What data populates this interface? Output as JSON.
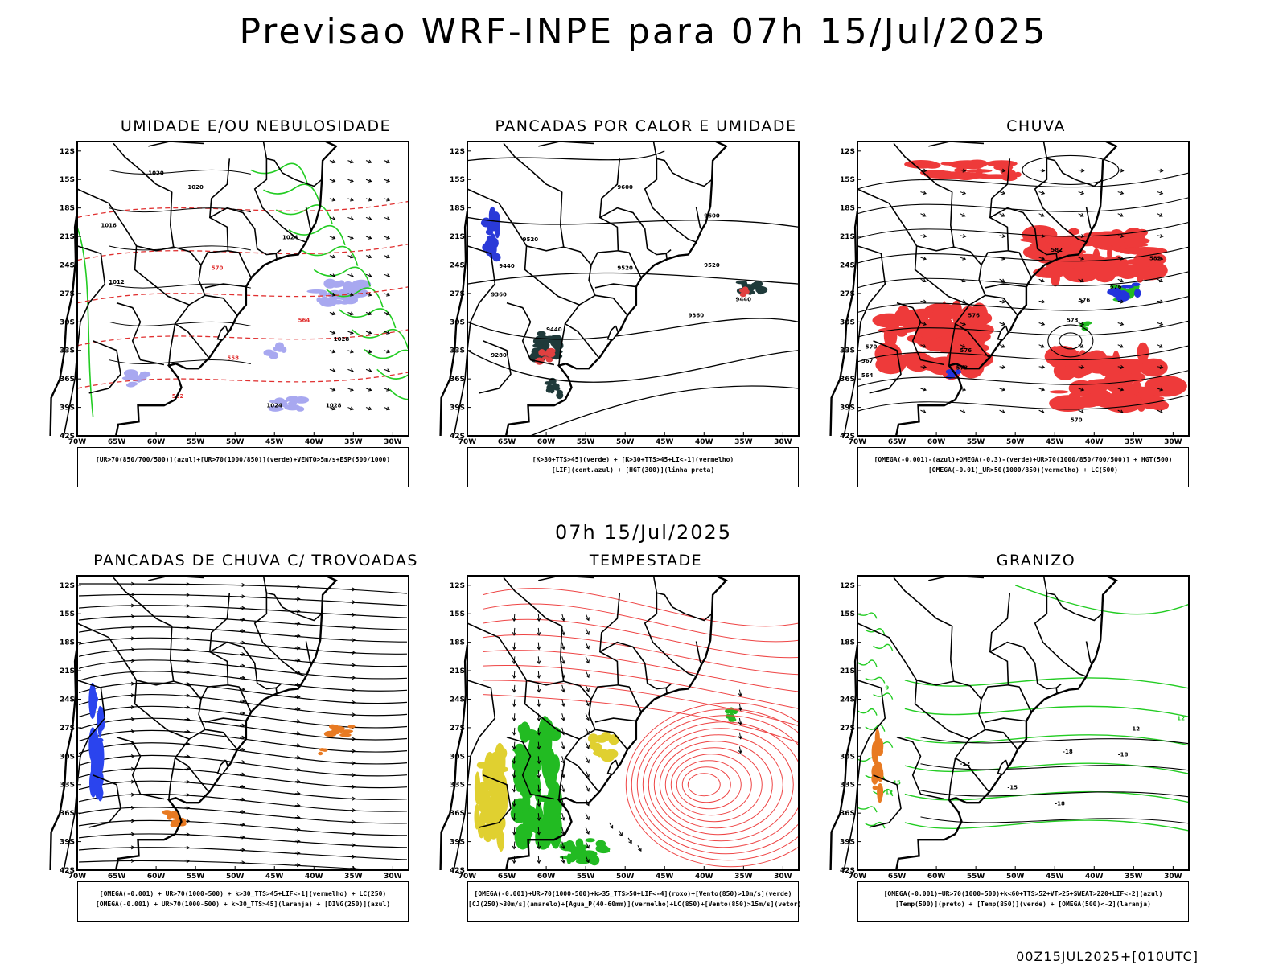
{
  "title": "Previsao WRF-INPE  para 07h 15/Jul/2025",
  "mid_title": "07h 15/Jul/2025",
  "footer": "00Z15JUL2025+[010UTC]",
  "axes": {
    "lat_labels": [
      "12S",
      "15S",
      "18S",
      "21S",
      "24S",
      "27S",
      "30S",
      "33S",
      "36S",
      "39S",
      "42S"
    ],
    "lon_labels": [
      "70W",
      "65W",
      "60W",
      "55W",
      "50W",
      "45W",
      "40W",
      "35W",
      "30W"
    ]
  },
  "panels": [
    {
      "title": "UMIDADE E/OU NEBULOSIDADE",
      "caption": [
        "[UR>70(850/700/500)](azul)+[UR>70(1000/850)](verde)+VENTO>5m/s+ESP(500/1000)"
      ],
      "labels": [
        "1020",
        "1024",
        "1016",
        "1012",
        "1028",
        "570",
        "564",
        "558",
        "552"
      ],
      "colors": {
        "blue": "#a8a8f0",
        "green": "#22cc22",
        "red": "#e03030"
      }
    },
    {
      "title": "PANCADAS POR CALOR E UMIDADE",
      "caption": [
        "[K>30+TTS>45](verde) + [K>30+TTS>45+LI<-1](vermelho)",
        "[LIF](cont.azul) + [HGT(300)](linha preta)"
      ],
      "labels": [
        "9600",
        "9520",
        "9440",
        "9360",
        "9280"
      ],
      "colors": {
        "dark": "#1f3a3a",
        "red": "#e04040",
        "blue": "#2a3ad8"
      }
    },
    {
      "title": "CHUVA",
      "caption": [
        "[OMEGA(-0.001)-(azul)+OMEGA(-0.3)-(verde)+UR>70(1000/850/700/500)] + HGT(500)",
        "[OMEGA(-0.01)_UR>50(1000/850)(vermelho) + LC(500)"
      ],
      "labels": [
        "582",
        "576",
        "573",
        "570",
        "567",
        "564"
      ],
      "colors": {
        "red": "#ee3a3a",
        "green": "#22bb22",
        "blue": "#2233dd"
      }
    },
    {
      "title": "PANCADAS DE CHUVA C/ TROVOADAS",
      "caption": [
        "[OMEGA(-0.001) + UR>70(1000-500) + k>30_TTS>45+LIF<-1](vermelho) + LC(250)",
        "[OMEGA(-0.001) + UR>70(1000-500) + k>30_TTS>45](laranja) + [DIVG(250)](azul)"
      ],
      "labels": [],
      "colors": {
        "orange": "#e87a22",
        "blue": "#2a44ee"
      }
    },
    {
      "title": "TEMPESTADE",
      "caption": [
        "[OMEGA(-0.001)+UR>70(1000-500)+k>35_TTS>50+LIF<-4](roxo)+[Vento(850)>10m/s](verde)",
        "[CJ(250)>30m/s](amarelo)+[Agua_P(40-60mm)](vermelho)+LC(850)+[Vento(850)>15m/s](vetor)"
      ],
      "labels": [],
      "colors": {
        "yellow": "#e0d030",
        "green": "#22bb22",
        "red": "#ee4444"
      }
    },
    {
      "title": "GRANIZO",
      "caption": [
        "[OMEGA(-0.001)+UR>70(1000-500)+k<60+TTS>52+VT>25+SWEAT>220+LIF<-2](azul)",
        "[Temp(500)](preto) + [Temp(850)](verde) + [OMEGA(500)<-2](laranja)"
      ],
      "labels": [
        "-12",
        "-15",
        "-18",
        "9",
        "12",
        "15"
      ],
      "colors": {
        "green": "#22cc22",
        "orange": "#e87a22"
      }
    }
  ]
}
